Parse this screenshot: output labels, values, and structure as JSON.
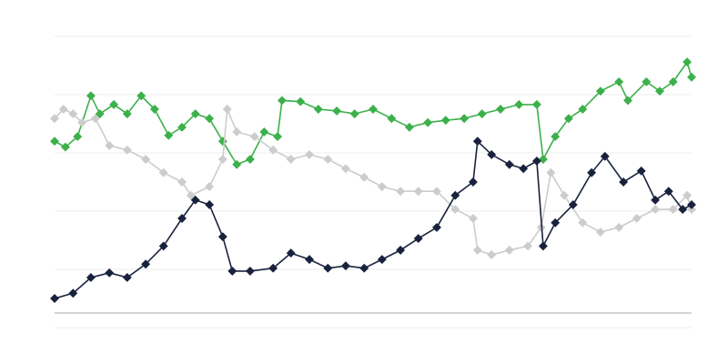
{
  "chart_data": {
    "type": "line",
    "title": "",
    "xlabel": "",
    "ylabel": "",
    "xlim": [
      0,
      100
    ],
    "ylim": [
      0,
      50
    ],
    "grid": true,
    "gridlines_y": [
      0,
      10,
      20,
      30,
      40,
      50
    ],
    "baseline_y": 2.5,
    "series": [
      {
        "color": "#3cb04a",
        "x": [
          0,
          1.7,
          3.6,
          5.7,
          7.1,
          9.3,
          11.4,
          13.6,
          15.7,
          17.9,
          20,
          22.1,
          24.3,
          26.4,
          28.6,
          30.7,
          32.9,
          35,
          35.7,
          38.6,
          41.4,
          44.3,
          47.1,
          50,
          52.9,
          55.7,
          58.6,
          61.4,
          64.3,
          67.1,
          70,
          72.9,
          75.7,
          76.7,
          78.6,
          80.7,
          82.9,
          85.7,
          88.6,
          90,
          92.9,
          95,
          97.1,
          99.3,
          100
        ],
        "y": [
          32,
          31,
          32.8,
          39.8,
          36.7,
          38.3,
          36.7,
          39.8,
          37.5,
          33,
          34.4,
          36.7,
          35.9,
          32,
          28,
          28.9,
          33.6,
          32.8,
          39,
          38.8,
          37.5,
          37.2,
          36.7,
          37.5,
          35.9,
          34.4,
          35.2,
          35.6,
          35.9,
          36.7,
          37.5,
          38.3,
          38.3,
          28.9,
          32.8,
          35.9,
          37.5,
          40.6,
          42.2,
          39,
          42.2,
          40.6,
          42.2,
          45.6,
          43
        ]
      },
      {
        "color": "#cccccc",
        "x": [
          0,
          1.4,
          2.9,
          4.3,
          6.4,
          8.6,
          11.4,
          14.3,
          17.1,
          20,
          21.4,
          24.3,
          26.4,
          27.1,
          28.6,
          31.4,
          34.3,
          37.1,
          40,
          42.9,
          45.7,
          48.6,
          51.4,
          54.3,
          57.1,
          60,
          62.9,
          65.7,
          66.4,
          68.6,
          71.4,
          74.3,
          76.4,
          77.9,
          80,
          82.9,
          85.7,
          88.6,
          91.4,
          94.3,
          97.1,
          99.3,
          100
        ],
        "y": [
          35.9,
          37.5,
          36.7,
          35.2,
          35.9,
          31.25,
          30.5,
          28.9,
          26.6,
          25,
          22.7,
          24.2,
          28.9,
          37.5,
          33.6,
          32.8,
          30.5,
          28.9,
          29.7,
          28.9,
          27.3,
          25.8,
          24.2,
          23.4,
          23.4,
          23.4,
          20.3,
          18.75,
          13.3,
          12.5,
          13.3,
          14,
          17.2,
          26.6,
          22.7,
          18,
          16.4,
          17.2,
          18.75,
          20.3,
          20.3,
          22.7,
          20.3
        ]
      },
      {
        "color": "#18223d",
        "x": [
          0,
          2.9,
          5.7,
          8.6,
          11.4,
          14.3,
          17.1,
          20,
          22.1,
          24.3,
          26.4,
          27.9,
          30.7,
          34.3,
          37.1,
          40,
          42.9,
          45.7,
          48.6,
          51.4,
          54.3,
          57.1,
          60,
          62.9,
          65.7,
          66.4,
          68.6,
          71.4,
          73.6,
          75.7,
          76.7,
          78.6,
          81.4,
          84.3,
          86.4,
          89.3,
          92.1,
          94.3,
          96.4,
          98.6,
          100
        ],
        "y": [
          5,
          5.9,
          8.6,
          9.4,
          8.6,
          10.9,
          14,
          18.75,
          21.9,
          21.1,
          15.6,
          9.7,
          9.7,
          10.2,
          12.8,
          11.7,
          10.2,
          10.6,
          10.2,
          11.7,
          13.3,
          15.3,
          17.2,
          22.7,
          25,
          32,
          29.7,
          28,
          27.3,
          28.6,
          14,
          18,
          21.1,
          26.6,
          29.4,
          25,
          26.9,
          21.9,
          23.4,
          20.3,
          21.1
        ]
      }
    ]
  }
}
